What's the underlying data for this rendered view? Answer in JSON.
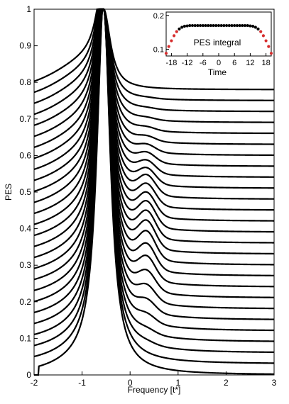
{
  "chart_data": [
    {
      "type": "line",
      "title": "",
      "xlabel": "Frequency [t*]",
      "ylabel": "PES",
      "xlim": [
        -2,
        3
      ],
      "ylim": [
        0,
        1
      ],
      "xticks": [
        -2,
        -1,
        0,
        1,
        2,
        3
      ],
      "yticks": [
        0,
        0.1,
        0.2,
        0.3,
        0.4,
        0.5,
        0.6,
        0.7,
        0.8,
        0.9,
        1
      ],
      "xtick_labels": [
        "-2",
        "-1",
        "0",
        "1",
        "2",
        "3"
      ],
      "ytick_labels": [
        "0",
        "0.1",
        "0.2",
        "0.3",
        "0.4",
        "0.5",
        "0.6",
        "0.7",
        "0.8",
        "0.9",
        "1"
      ],
      "series_description_offsets": [
        0,
        0.03,
        0.06,
        0.09,
        0.12,
        0.15,
        0.18,
        0.21,
        0.24,
        0.27,
        0.3,
        0.33,
        0.36,
        0.39,
        0.42,
        0.45,
        0.48,
        0.51,
        0.54,
        0.57,
        0.6,
        0.63,
        0.66,
        0.69,
        0.72,
        0.75,
        0.78
      ],
      "main_peak_center": -0.55,
      "main_peak_max": 1.0,
      "side_peak_center": 0.35,
      "side_peak_heights": [
        0.0,
        0.0,
        0.005,
        0.01,
        0.02,
        0.03,
        0.04,
        0.05,
        0.06,
        0.065,
        0.07,
        0.07,
        0.068,
        0.065,
        0.06,
        0.055,
        0.05,
        0.04,
        0.032,
        0.025,
        0.018,
        0.012,
        0.008,
        0.005,
        0.003,
        0.002,
        0.0
      ],
      "color": "#000000"
    },
    {
      "type": "scatter",
      "title": "PES integral",
      "xlabel": "Time",
      "ylabel": "",
      "xlim": [
        -20,
        20
      ],
      "ylim": [
        0.08,
        0.21
      ],
      "xticks": [
        -18,
        -12,
        -6,
        0,
        6,
        12,
        18
      ],
      "yticks": [
        0.1,
        0.2
      ],
      "xtick_labels": [
        "-18",
        "-12",
        "-6",
        "0",
        "6",
        "12",
        "18"
      ],
      "ytick_labels": [
        "0.1",
        "0.2"
      ],
      "x": [
        -20,
        -19,
        -18,
        -17,
        -16,
        -15,
        -14,
        -13,
        -12,
        -11,
        -10,
        -9,
        -8,
        -7,
        -6,
        -5,
        -4,
        -3,
        -2,
        -1,
        0,
        1,
        2,
        3,
        4,
        5,
        6,
        7,
        8,
        9,
        10,
        11,
        12,
        13,
        14,
        15,
        16,
        17,
        18,
        19,
        20
      ],
      "y": [
        0.088,
        0.108,
        0.125,
        0.14,
        0.152,
        0.16,
        0.165,
        0.168,
        0.169,
        0.17,
        0.17,
        0.17,
        0.17,
        0.17,
        0.17,
        0.17,
        0.17,
        0.17,
        0.17,
        0.17,
        0.17,
        0.17,
        0.17,
        0.17,
        0.17,
        0.17,
        0.17,
        0.17,
        0.17,
        0.17,
        0.17,
        0.17,
        0.169,
        0.168,
        0.165,
        0.16,
        0.152,
        0.14,
        0.125,
        0.108,
        0.088
      ],
      "marker_colors": {
        "normal": "#000000",
        "highlight": "#d62c2c"
      },
      "highlight_indices": [
        0,
        1,
        2,
        3,
        4,
        36,
        37,
        38,
        39,
        40
      ]
    }
  ]
}
